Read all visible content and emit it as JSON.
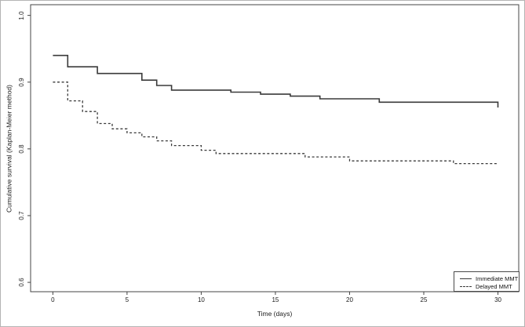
{
  "figure": {
    "background": "#ffffff",
    "frame_color": "#b4b4b4",
    "axis_color": "#444444",
    "text_color": "#1a1a1a"
  },
  "chart_data": {
    "type": "line",
    "subtype": "kaplan-meier-step",
    "title": "",
    "xlabel": "Time (days)",
    "ylabel": "Cumulative survival (Kaplan-Meier method)",
    "grid": false,
    "legend_position": "inside-bottom-right",
    "xlim": [
      -1.5,
      31.4
    ],
    "ylim": [
      0.586,
      1.016
    ],
    "x_ticks": [
      {
        "label": "0",
        "value": 0
      },
      {
        "label": "5",
        "value": 5
      },
      {
        "label": "10",
        "value": 10
      },
      {
        "label": "15",
        "value": 15
      },
      {
        "label": "20",
        "value": 20
      },
      {
        "label": "25",
        "value": 25
      },
      {
        "label": "30",
        "value": 30
      }
    ],
    "y_ticks": [
      {
        "label": "1.0",
        "value": 1.0
      },
      {
        "label": "0.9",
        "value": 0.9
      },
      {
        "label": "0.8",
        "value": 0.8
      },
      {
        "label": "0.7",
        "value": 0.7
      },
      {
        "label": "0.6",
        "value": 0.6
      }
    ],
    "series": [
      {
        "name": "Immediate MMT",
        "style": "solid",
        "color": "#3a3a3a",
        "points": [
          [
            0,
            0.94
          ],
          [
            1,
            0.923
          ],
          [
            3,
            0.913
          ],
          [
            6,
            0.903
          ],
          [
            7,
            0.895
          ],
          [
            8,
            0.888
          ],
          [
            12,
            0.885
          ],
          [
            14,
            0.882
          ],
          [
            16,
            0.879
          ],
          [
            18,
            0.875
          ],
          [
            22,
            0.87
          ],
          [
            30,
            0.862
          ]
        ]
      },
      {
        "name": "Delayed MMT",
        "style": "dashed",
        "color": "#3a3a3a",
        "points": [
          [
            0,
            0.9
          ],
          [
            1,
            0.872
          ],
          [
            2,
            0.856
          ],
          [
            3,
            0.838
          ],
          [
            4,
            0.83
          ],
          [
            5,
            0.824
          ],
          [
            6,
            0.818
          ],
          [
            7,
            0.812
          ],
          [
            8,
            0.805
          ],
          [
            10,
            0.798
          ],
          [
            11,
            0.793
          ],
          [
            17,
            0.788
          ],
          [
            20,
            0.782
          ],
          [
            27,
            0.778
          ],
          [
            30,
            0.778
          ]
        ]
      }
    ]
  }
}
